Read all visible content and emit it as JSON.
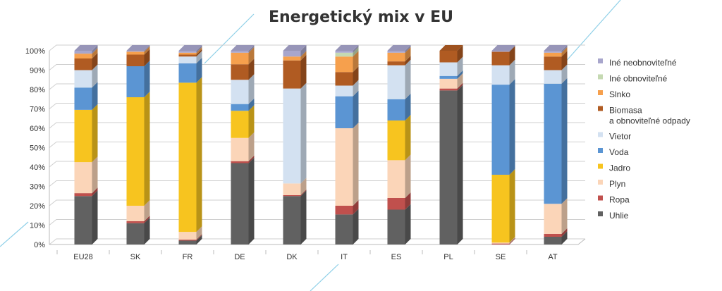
{
  "chart_data": {
    "type": "bar",
    "stacked": true,
    "title": "Energetický mix v EU",
    "xlabel": "",
    "ylabel": "",
    "ylim": [
      0,
      100
    ],
    "yticks": [
      "0%",
      "10%",
      "20%",
      "30%",
      "40%",
      "50%",
      "60%",
      "70%",
      "80%",
      "90%",
      "100%"
    ],
    "categories": [
      "EU28",
      "SK",
      "FR",
      "DE",
      "DK",
      "IT",
      "ES",
      "PL",
      "SE",
      "AT"
    ],
    "legend_position": "right",
    "series": [
      {
        "name": "Uhlie",
        "color": "#616161",
        "values": [
          25,
          11,
          2,
          42,
          25,
          15.5,
          18,
          79.5,
          0,
          4
        ]
      },
      {
        "name": "Ropa",
        "color": "#c0504d",
        "values": [
          1.5,
          1,
          0.5,
          1,
          0.5,
          4.5,
          6,
          1,
          0.5,
          1.5
        ]
      },
      {
        "name": "Plyn",
        "color": "#fbd5b8",
        "values": [
          16,
          8,
          4,
          12,
          6,
          40,
          19.5,
          5,
          0.5,
          15.5
        ]
      },
      {
        "name": "Jadro",
        "color": "#f7c41f",
        "values": [
          27,
          56,
          77,
          14,
          0,
          0,
          20.5,
          0,
          35,
          0
        ]
      },
      {
        "name": "Voda",
        "color": "#5b95d3",
        "values": [
          11.5,
          16,
          10,
          3.5,
          0,
          16.5,
          11,
          1.5,
          46.5,
          62
        ]
      },
      {
        "name": "Vietor",
        "color": "#d3e1f1",
        "values": [
          9,
          0,
          3.5,
          12.5,
          49,
          5.5,
          17.5,
          7,
          10,
          7
        ]
      },
      {
        "name": "Biomasa\na obnoviteľné odpady",
        "color": "#b05b22",
        "values": [
          6,
          6,
          1,
          8,
          14.5,
          7,
          2,
          6,
          7,
          7
        ]
      },
      {
        "name": "Slnko",
        "color": "#f6a04d",
        "values": [
          2.5,
          1.5,
          1,
          6,
          2,
          8,
          4.5,
          0,
          0,
          2
        ]
      },
      {
        "name": "Iné obnoviteľné",
        "color": "#c5d9b2",
        "values": [
          0,
          0,
          0,
          0,
          0,
          2,
          0,
          0,
          0,
          0
        ]
      },
      {
        "name": "Iné neobnoviteľné",
        "color": "#a8a6cc",
        "values": [
          1.5,
          0.5,
          1,
          1,
          3,
          1,
          1,
          0,
          0.5,
          1
        ]
      }
    ]
  }
}
